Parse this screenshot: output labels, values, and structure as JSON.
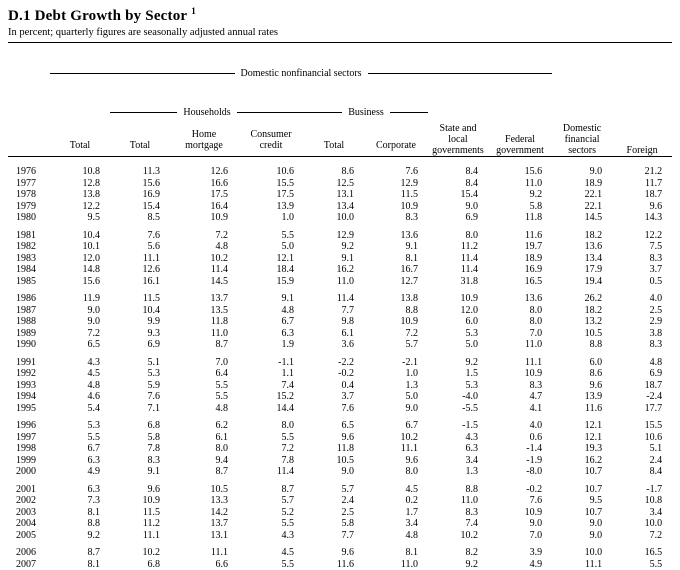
{
  "title": "D.1 Debt Growth by Sector",
  "title_note": "1",
  "subtitle": "In percent; quarterly figures are seasonally adjusted annual rates",
  "header": {
    "group_domestic_nonfinancial": "Domestic nonfinancial sectors",
    "group_households": "Households",
    "group_business": "Business",
    "col_total": "Total",
    "col_hh_total": "Total",
    "col_home_mortgage": "Home\nmortgage",
    "col_consumer_credit": "Consumer\ncredit",
    "col_bus_total": "Total",
    "col_corporate": "Corporate",
    "col_state_local": "State and\nlocal\ngovernments",
    "col_federal": "Federal\ngovernment",
    "col_dom_financial": "Domestic\nfinancial\nsectors",
    "col_foreign": "Foreign"
  },
  "table": {
    "groups": [
      [
        {
          "year": "1976",
          "values": [
            "10.8",
            "11.3",
            "12.6",
            "10.6",
            "8.6",
            "7.6",
            "8.4",
            "15.6",
            "9.0",
            "21.2"
          ]
        },
        {
          "year": "1977",
          "values": [
            "12.8",
            "15.6",
            "16.6",
            "15.5",
            "12.5",
            "12.9",
            "8.4",
            "11.0",
            "18.9",
            "11.7"
          ]
        },
        {
          "year": "1978",
          "values": [
            "13.8",
            "16.9",
            "17.5",
            "17.5",
            "13.1",
            "11.5",
            "15.4",
            "9.2",
            "22.1",
            "18.7"
          ]
        },
        {
          "year": "1979",
          "values": [
            "12.2",
            "15.4",
            "16.4",
            "13.9",
            "13.4",
            "10.9",
            "9.0",
            "5.8",
            "22.1",
            "9.6"
          ]
        },
        {
          "year": "1980",
          "values": [
            "9.5",
            "8.5",
            "10.9",
            "1.0",
            "10.0",
            "8.3",
            "6.9",
            "11.8",
            "14.5",
            "14.3"
          ]
        }
      ],
      [
        {
          "year": "1981",
          "values": [
            "10.4",
            "7.6",
            "7.2",
            "5.5",
            "12.9",
            "13.6",
            "8.0",
            "11.6",
            "18.2",
            "12.2"
          ]
        },
        {
          "year": "1982",
          "values": [
            "10.1",
            "5.6",
            "4.8",
            "5.0",
            "9.2",
            "9.1",
            "11.2",
            "19.7",
            "13.6",
            "7.5"
          ]
        },
        {
          "year": "1983",
          "values": [
            "12.0",
            "11.1",
            "10.2",
            "12.1",
            "9.1",
            "8.1",
            "11.4",
            "18.9",
            "13.4",
            "8.3"
          ]
        },
        {
          "year": "1984",
          "values": [
            "14.8",
            "12.6",
            "11.4",
            "18.4",
            "16.2",
            "16.7",
            "11.4",
            "16.9",
            "17.9",
            "3.7"
          ]
        },
        {
          "year": "1985",
          "values": [
            "15.6",
            "16.1",
            "14.5",
            "15.9",
            "11.0",
            "12.7",
            "31.8",
            "16.5",
            "19.4",
            "0.5"
          ]
        }
      ],
      [
        {
          "year": "1986",
          "values": [
            "11.9",
            "11.5",
            "13.7",
            "9.1",
            "11.4",
            "13.8",
            "10.9",
            "13.6",
            "26.2",
            "4.0"
          ]
        },
        {
          "year": "1987",
          "values": [
            "9.0",
            "10.4",
            "13.5",
            "4.8",
            "7.7",
            "8.8",
            "12.0",
            "8.0",
            "18.2",
            "2.5"
          ]
        },
        {
          "year": "1988",
          "values": [
            "9.0",
            "9.9",
            "11.8",
            "6.7",
            "9.8",
            "10.9",
            "6.0",
            "8.0",
            "13.2",
            "2.9"
          ]
        },
        {
          "year": "1989",
          "values": [
            "7.2",
            "9.3",
            "11.0",
            "6.3",
            "6.1",
            "7.2",
            "5.3",
            "7.0",
            "10.5",
            "3.8"
          ]
        },
        {
          "year": "1990",
          "values": [
            "6.5",
            "6.9",
            "8.7",
            "1.9",
            "3.6",
            "5.7",
            "5.0",
            "11.0",
            "8.8",
            "8.3"
          ]
        }
      ],
      [
        {
          "year": "1991",
          "values": [
            "4.3",
            "5.1",
            "7.0",
            "-1.1",
            "-2.2",
            "-2.1",
            "9.2",
            "11.1",
            "6.0",
            "4.8"
          ]
        },
        {
          "year": "1992",
          "values": [
            "4.5",
            "5.3",
            "6.4",
            "1.1",
            "-0.2",
            "1.0",
            "1.5",
            "10.9",
            "8.6",
            "6.9"
          ]
        },
        {
          "year": "1993",
          "values": [
            "4.8",
            "5.9",
            "5.5",
            "7.4",
            "0.4",
            "1.3",
            "5.3",
            "8.3",
            "9.6",
            "18.7"
          ]
        },
        {
          "year": "1994",
          "values": [
            "4.6",
            "7.6",
            "5.5",
            "15.2",
            "3.7",
            "5.0",
            "-4.0",
            "4.7",
            "13.9",
            "-2.4"
          ]
        },
        {
          "year": "1995",
          "values": [
            "5.4",
            "7.1",
            "4.8",
            "14.4",
            "7.6",
            "9.0",
            "-5.5",
            "4.1",
            "11.6",
            "17.7"
          ]
        }
      ],
      [
        {
          "year": "1996",
          "values": [
            "5.3",
            "6.8",
            "6.2",
            "8.0",
            "6.5",
            "6.7",
            "-1.5",
            "4.0",
            "12.1",
            "15.5"
          ]
        },
        {
          "year": "1997",
          "values": [
            "5.5",
            "5.8",
            "6.1",
            "5.5",
            "9.6",
            "10.2",
            "4.3",
            "0.6",
            "12.1",
            "10.6"
          ]
        },
        {
          "year": "1998",
          "values": [
            "6.7",
            "7.8",
            "8.0",
            "7.2",
            "11.8",
            "11.1",
            "6.3",
            "-1.4",
            "19.3",
            "5.1"
          ]
        },
        {
          "year": "1999",
          "values": [
            "6.3",
            "8.3",
            "9.4",
            "7.8",
            "10.5",
            "9.6",
            "3.4",
            "-1.9",
            "16.2",
            "2.4"
          ]
        },
        {
          "year": "2000",
          "values": [
            "4.9",
            "9.1",
            "8.7",
            "11.4",
            "9.0",
            "8.0",
            "1.3",
            "-8.0",
            "10.7",
            "8.4"
          ]
        }
      ],
      [
        {
          "year": "2001",
          "values": [
            "6.3",
            "9.6",
            "10.5",
            "8.7",
            "5.7",
            "4.5",
            "8.8",
            "-0.2",
            "10.7",
            "-1.7"
          ]
        },
        {
          "year": "2002",
          "values": [
            "7.3",
            "10.9",
            "13.3",
            "5.7",
            "2.4",
            "0.2",
            "11.0",
            "7.6",
            "9.5",
            "10.8"
          ]
        },
        {
          "year": "2003",
          "values": [
            "8.1",
            "11.5",
            "14.2",
            "5.2",
            "2.5",
            "1.7",
            "8.3",
            "10.9",
            "10.7",
            "3.4"
          ]
        },
        {
          "year": "2004",
          "values": [
            "8.8",
            "11.2",
            "13.7",
            "5.5",
            "5.8",
            "3.4",
            "7.4",
            "9.0",
            "9.0",
            "10.0"
          ]
        },
        {
          "year": "2005",
          "values": [
            "9.2",
            "11.1",
            "13.1",
            "4.3",
            "7.7",
            "4.8",
            "10.2",
            "7.0",
            "9.0",
            "7.2"
          ]
        }
      ],
      [
        {
          "year": "2006",
          "values": [
            "8.7",
            "10.2",
            "11.1",
            "4.5",
            "9.6",
            "8.1",
            "8.2",
            "3.9",
            "10.0",
            "16.5"
          ]
        },
        {
          "year": "2007",
          "values": [
            "8.1",
            "6.8",
            "6.6",
            "5.5",
            "11.6",
            "11.0",
            "9.2",
            "4.9",
            "11.1",
            "5.5"
          ]
        }
      ]
    ]
  }
}
